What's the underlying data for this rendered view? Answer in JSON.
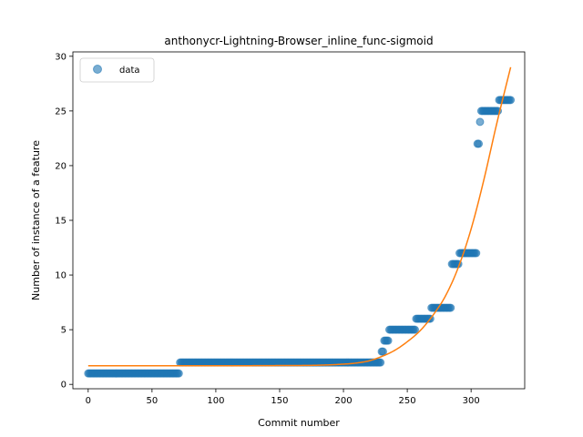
{
  "chart_data": {
    "type": "scatter",
    "title": "anthonycr-Lightning-Browser_inline_func-sigmoid",
    "xlabel": "Commit number",
    "ylabel": "Number of instance of a feature",
    "xlim": [
      -12,
      342
    ],
    "ylim": [
      -0.4,
      30.4
    ],
    "x_ticks": [
      0,
      50,
      100,
      150,
      200,
      250,
      300
    ],
    "y_ticks": [
      0,
      5,
      10,
      15,
      20,
      25,
      30
    ],
    "grid": false,
    "legend": {
      "placement": "top-left",
      "entries": [
        "data"
      ]
    },
    "colors": {
      "scatter": "#1f77b4",
      "fit": "#ff7f0e"
    },
    "series": [
      {
        "name": "data",
        "kind": "scatter",
        "steps": [
          {
            "x_from": 0,
            "x_to": 71,
            "y": 1
          },
          {
            "x_from": 72,
            "x_to": 229,
            "y": 2
          },
          {
            "x_from": 230,
            "x_to": 231,
            "y": 3
          },
          {
            "x_from": 232,
            "x_to": 235,
            "y": 4
          },
          {
            "x_from": 236,
            "x_to": 256,
            "y": 5
          },
          {
            "x_from": 257,
            "x_to": 268,
            "y": 6
          },
          {
            "x_from": 269,
            "x_to": 284,
            "y": 7
          },
          {
            "x_from": 285,
            "x_to": 290,
            "y": 11
          },
          {
            "x_from": 291,
            "x_to": 304,
            "y": 12
          },
          {
            "x_from": 305,
            "x_to": 306,
            "y": 22
          },
          {
            "x_from": 307,
            "x_to": 307,
            "y": 24
          },
          {
            "x_from": 308,
            "x_to": 321,
            "y": 25
          },
          {
            "x_from": 322,
            "x_to": 331,
            "y": 26
          }
        ]
      },
      {
        "name": "",
        "kind": "line",
        "x": [
          0,
          50,
          100,
          150,
          180,
          200,
          210,
          220,
          230,
          240,
          250,
          260,
          270,
          280,
          290,
          300,
          310,
          320,
          331
        ],
        "y": [
          1.7,
          1.7,
          1.7,
          1.72,
          1.75,
          1.85,
          1.95,
          2.15,
          2.55,
          3.1,
          3.9,
          4.9,
          6.3,
          8.1,
          10.7,
          14.2,
          18.7,
          23.8,
          29.0
        ]
      }
    ]
  }
}
